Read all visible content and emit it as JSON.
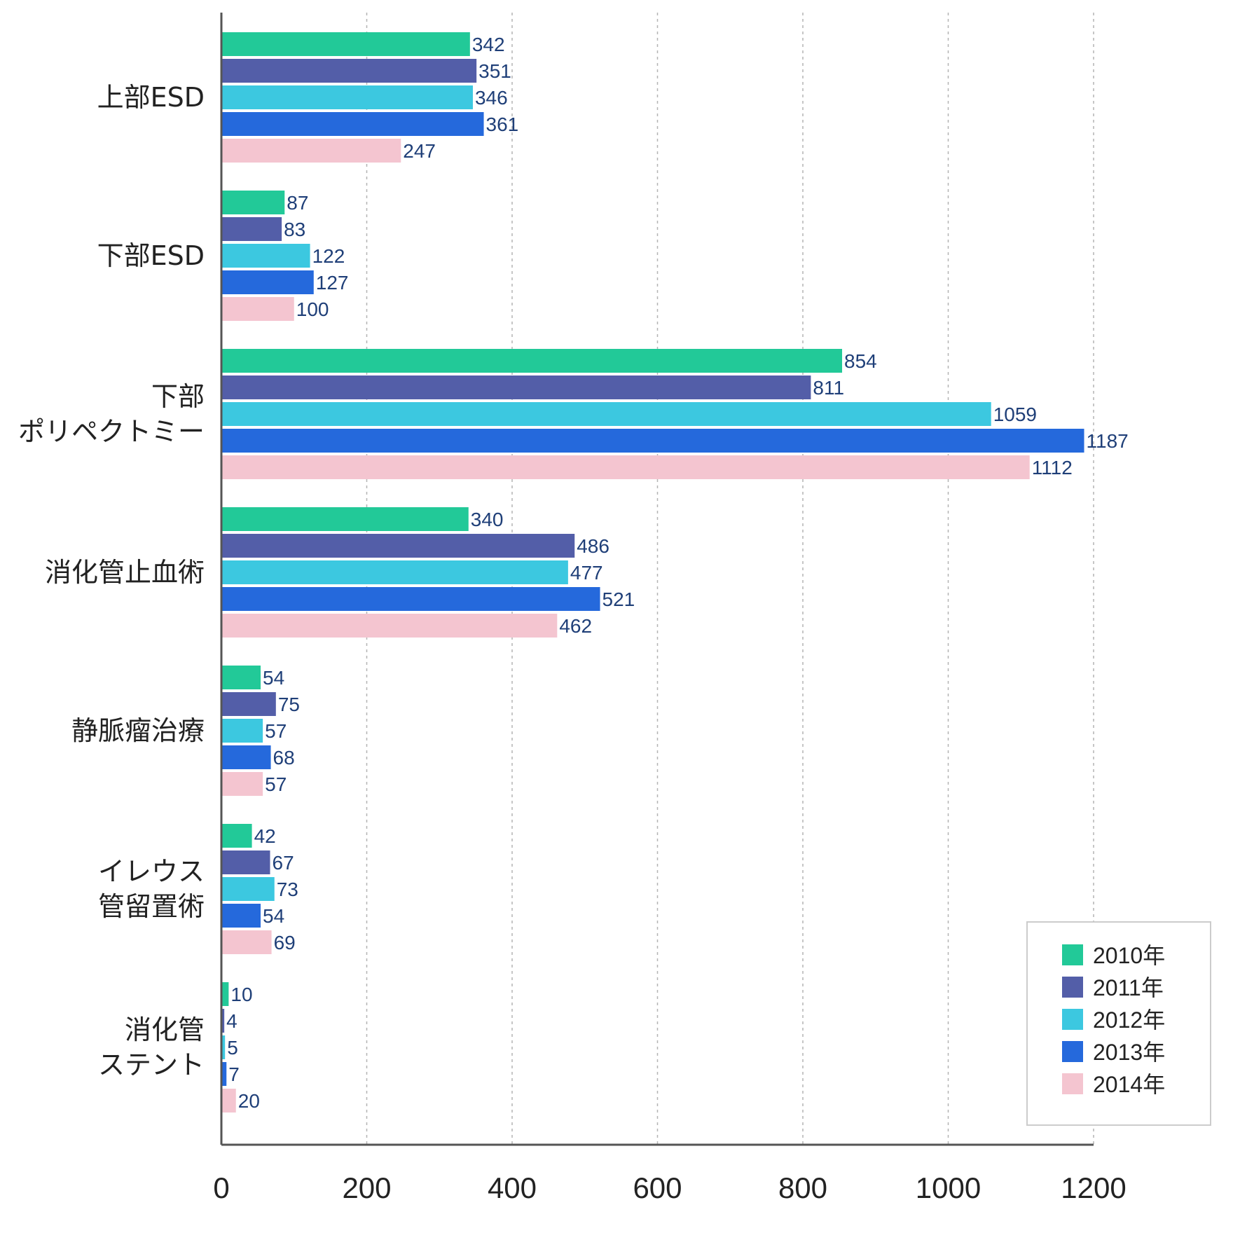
{
  "chart_data": {
    "type": "bar",
    "orientation": "horizontal",
    "title": "",
    "xlabel": "",
    "ylabel": "",
    "xlim": [
      0,
      1200
    ],
    "x_ticks": [
      0,
      200,
      400,
      600,
      800,
      1000,
      1200
    ],
    "grid": "vertical dashed",
    "legend_position": "bottom-right",
    "categories": [
      [
        "上部ESD"
      ],
      [
        "下部ESD"
      ],
      [
        "下部",
        "ポリペクトミー"
      ],
      [
        "消化管止血術"
      ],
      [
        "静脈瘤治療"
      ],
      [
        "イレウス",
        "管留置術"
      ],
      [
        "消化管",
        "ステント"
      ]
    ],
    "series": [
      {
        "name": "2010年",
        "color": "#22c998",
        "values": [
          342,
          87,
          854,
          340,
          54,
          42,
          10
        ]
      },
      {
        "name": "2011年",
        "color": "#535ea8",
        "values": [
          351,
          83,
          811,
          486,
          75,
          67,
          4
        ]
      },
      {
        "name": "2012年",
        "color": "#3cc8e0",
        "values": [
          346,
          122,
          1059,
          477,
          57,
          73,
          5
        ]
      },
      {
        "name": "2013年",
        "color": "#2569dc",
        "values": [
          361,
          127,
          1187,
          521,
          68,
          54,
          7
        ]
      },
      {
        "name": "2014年",
        "color": "#f4c5d0",
        "values": [
          247,
          100,
          1112,
          462,
          57,
          69,
          20
        ]
      }
    ]
  }
}
